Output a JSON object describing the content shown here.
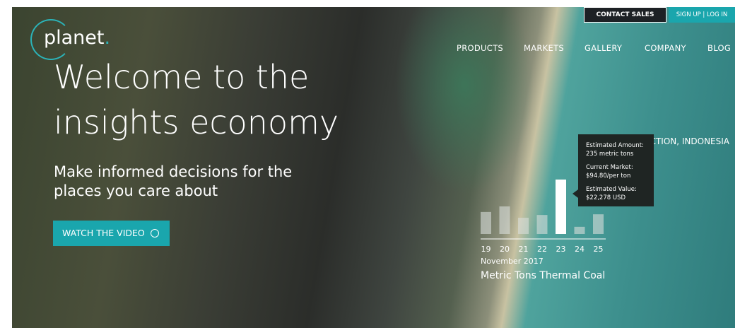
{
  "header": {
    "logo_text": "planet",
    "logo_dot": ".",
    "contact": "CONTACT SALES",
    "signup": "SIGN UP",
    "separator": "|",
    "login": "LOG IN",
    "nav": [
      "PRODUCTS",
      "MARKETS",
      "GALLERY",
      "COMPANY",
      "BLOG"
    ]
  },
  "hero": {
    "title_lines": [
      "Welcome to the",
      "insights economy"
    ],
    "subtitle_lines": [
      "Make informed decisions for the",
      "places you care about"
    ],
    "button": "WATCH THE VIDEO"
  },
  "chart_data": {
    "type": "bar",
    "title": "COAL PRODUCTION, INDONESIA",
    "categories": [
      "19",
      "20",
      "21",
      "22",
      "23",
      "24",
      "25"
    ],
    "values": [
      95,
      119,
      70,
      82,
      235,
      31,
      85
    ],
    "colors": [
      "#d8dedb",
      "#d8dedb",
      "#d8dedb",
      "#d8dedb",
      "#ffffff",
      "#d8dedb",
      "#d8dedb"
    ],
    "period": "November 2017",
    "value_label": "Metric Tons Thermal Coal",
    "tooltip": [
      "Estimated Amount:",
      "235 metric tons",
      "Current Market:",
      "$94.80/per ton",
      "Estimated Value:",
      "$22,278 USD"
    ]
  }
}
